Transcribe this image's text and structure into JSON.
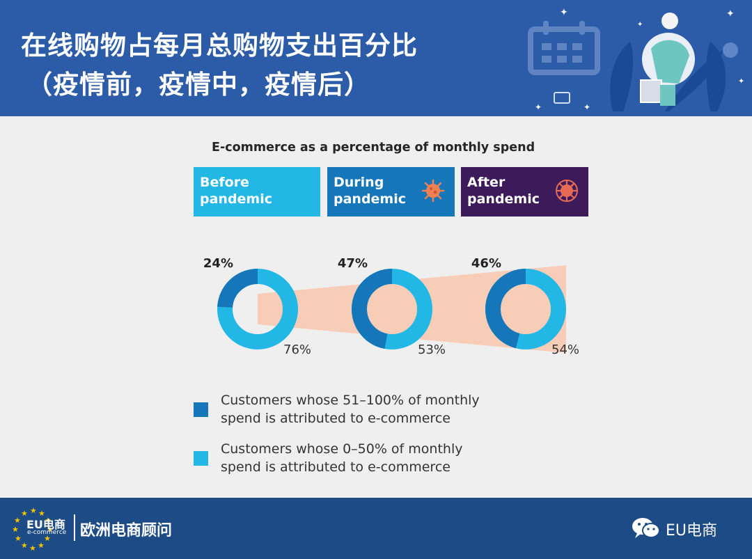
{
  "header": {
    "title_line1": "在线购物占每月总购物支出百分比",
    "title_line2": "（疫情前，疫情中，疫情后）"
  },
  "phases": [
    {
      "label_line1": "Before",
      "label_line2": "pandemic",
      "color": "#23b7e5"
    },
    {
      "label_line1": "During",
      "label_line2": "pandemic",
      "color": "#1577b9",
      "icon": "virus-icon"
    },
    {
      "label_line1": "After",
      "label_line2": "pandemic",
      "color": "#3d1b5a",
      "icon": "virus-icon"
    }
  ],
  "chart_data": {
    "type": "pie",
    "subtype": "donut",
    "title": "E-commerce as a percentage of monthly spend",
    "categories": [
      "Before pandemic",
      "During pandemic",
      "After pandemic"
    ],
    "series": [
      {
        "name": "Customers whose 51–100% of monthly spend is attributed to e-commerce",
        "values": [
          24,
          47,
          46
        ],
        "labels": [
          "24%",
          "47%",
          "46%"
        ],
        "color": "#1577b9"
      },
      {
        "name": "Customers whose 0–50% of monthly spend is attributed to e-commerce",
        "values": [
          76,
          53,
          54
        ],
        "labels": [
          "76%",
          "53%",
          "54%"
        ],
        "color": "#23b7e5"
      }
    ],
    "trend_band_color": "#f8cdb8"
  },
  "legend": [
    {
      "line1": "Customers whose 51–100% of monthly",
      "line2": "spend is attributed to e-commerce",
      "color": "#1577b9"
    },
    {
      "line1": "Customers whose 0–50% of monthly",
      "line2": "spend is attributed to e-commerce",
      "color": "#23b7e5"
    }
  ],
  "footer": {
    "logo_text": "EU电商",
    "logo_sub": "e-commerce",
    "brand": "欧洲电商顾问",
    "wechat_name": "EU电商",
    "wechat_icon": "wechat-icon"
  }
}
